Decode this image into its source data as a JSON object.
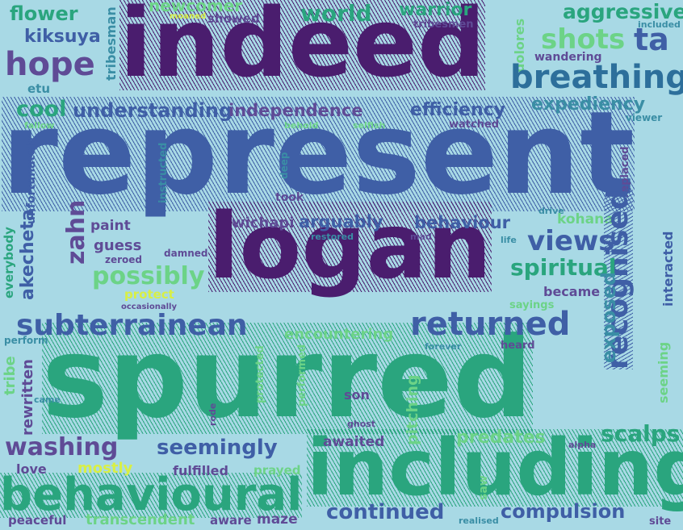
{
  "words": [
    {
      "text": "flower",
      "color": "#2aa57e"
    },
    {
      "text": "newcomer",
      "color": "#6cd387"
    },
    {
      "text": "moaned",
      "color": "#d8ef45"
    },
    {
      "text": "showed",
      "color": "#5f4b96"
    },
    {
      "text": "world",
      "color": "#2aa57e"
    },
    {
      "text": "warrior",
      "color": "#2aa57e"
    },
    {
      "text": "tribesmen",
      "color": "#5f4b96"
    },
    {
      "text": "aggressive",
      "color": "#2aa57e"
    },
    {
      "text": "included",
      "color": "#3a8ea5"
    },
    {
      "text": "kiksuya",
      "color": "#3f5fa6"
    },
    {
      "text": "indeed",
      "color": "#4a1d6e"
    },
    {
      "text": "tribesman",
      "color": "#3a8ea5"
    },
    {
      "text": "shots",
      "color": "#6cd387"
    },
    {
      "text": "ta",
      "color": "#3f5fa6"
    },
    {
      "text": "dolores",
      "color": "#6cd387"
    },
    {
      "text": "wandering",
      "color": "#5f4b96"
    },
    {
      "text": "hope",
      "color": "#5f4b96"
    },
    {
      "text": "etu",
      "color": "#3a8ea5"
    },
    {
      "text": "breathing",
      "color": "#2d6f9b"
    },
    {
      "text": "cool",
      "color": "#2aa57e"
    },
    {
      "text": "understanding",
      "color": "#3f5fa6"
    },
    {
      "text": "independence",
      "color": "#5f4b96"
    },
    {
      "text": "efficiency",
      "color": "#3f5fa6"
    },
    {
      "text": "expediency",
      "color": "#3a8ea5"
    },
    {
      "text": "fallow",
      "color": "#6cd387"
    },
    {
      "text": "behold",
      "color": "#6cd387"
    },
    {
      "text": "selfish",
      "color": "#6cd387"
    },
    {
      "text": "watched",
      "color": "#5f4b96"
    },
    {
      "text": "viewer",
      "color": "#3a8ea5"
    },
    {
      "text": "represent",
      "color": "#3f5fa6"
    },
    {
      "text": "unfortunately",
      "color": "#3f5fa6"
    },
    {
      "text": "instructed",
      "color": "#3a8ea5"
    },
    {
      "text": "deep",
      "color": "#3a8ea5"
    },
    {
      "text": "took",
      "color": "#5f4b96"
    },
    {
      "text": "replaced",
      "color": "#5f4b96"
    },
    {
      "text": "everybody",
      "color": "#2aa57e"
    },
    {
      "text": "akecheta",
      "color": "#3f5fa6"
    },
    {
      "text": "zahn",
      "color": "#5f4b96"
    },
    {
      "text": "paint",
      "color": "#5f4b96"
    },
    {
      "text": "wichapi",
      "color": "#5f4b96"
    },
    {
      "text": "arguably",
      "color": "#3f5fa6"
    },
    {
      "text": "behaviour",
      "color": "#3f5fa6"
    },
    {
      "text": "drive",
      "color": "#3a8ea5"
    },
    {
      "text": "kohana",
      "color": "#6cd387"
    },
    {
      "text": "guess",
      "color": "#5f4b96"
    },
    {
      "text": "zeroed",
      "color": "#5f4b96"
    },
    {
      "text": "logan",
      "color": "#4a1d6e"
    },
    {
      "text": "restored",
      "color": "#3a8ea5"
    },
    {
      "text": "mad",
      "color": "#5f4b96"
    },
    {
      "text": "life",
      "color": "#3a8ea5"
    },
    {
      "text": "views",
      "color": "#3f5fa6"
    },
    {
      "text": "recognised",
      "color": "#3f5fa6"
    },
    {
      "text": "interacted",
      "color": "#3f5fa6"
    },
    {
      "text": "damned",
      "color": "#5f4b96"
    },
    {
      "text": "spiritual",
      "color": "#2aa57e"
    },
    {
      "text": "possibly",
      "color": "#6cd387"
    },
    {
      "text": "protect",
      "color": "#d8ef45"
    },
    {
      "text": "occasionally",
      "color": "#5f4b96"
    },
    {
      "text": "became",
      "color": "#5f4b96"
    },
    {
      "text": "sayings",
      "color": "#6cd387"
    },
    {
      "text": "subterrainean",
      "color": "#3f5fa6"
    },
    {
      "text": "encountering",
      "color": "#6cd387"
    },
    {
      "text": "returned",
      "color": "#3f5fa6"
    },
    {
      "text": "exposed",
      "color": "#3a8ea5"
    },
    {
      "text": "seeming",
      "color": "#6cd387"
    },
    {
      "text": "perform",
      "color": "#3a8ea5"
    },
    {
      "text": "spurred",
      "color": "#2aa57e"
    },
    {
      "text": "forever",
      "color": "#3a8ea5"
    },
    {
      "text": "heard",
      "color": "#5f4b96"
    },
    {
      "text": "tribe",
      "color": "#6cd387"
    },
    {
      "text": "rewritten",
      "color": "#5f4b96"
    },
    {
      "text": "came",
      "color": "#3a8ea5"
    },
    {
      "text": "protected",
      "color": "#6cd387"
    },
    {
      "text": "performed",
      "color": "#6cd387"
    },
    {
      "text": "son",
      "color": "#5f4b96"
    },
    {
      "text": "pitching",
      "color": "#6cd387"
    },
    {
      "text": "rode",
      "color": "#5f4b96"
    },
    {
      "text": "ghost",
      "color": "#5f4b96"
    },
    {
      "text": "scalps",
      "color": "#2aa57e"
    },
    {
      "text": "washing",
      "color": "#5f4b96"
    },
    {
      "text": "seemingly",
      "color": "#3f5fa6"
    },
    {
      "text": "awaited",
      "color": "#5f4b96"
    },
    {
      "text": "predates",
      "color": "#6cd387"
    },
    {
      "text": "alpha",
      "color": "#5f4b96"
    },
    {
      "text": "love",
      "color": "#5f4b96"
    },
    {
      "text": "mostly",
      "color": "#d8ef45"
    },
    {
      "text": "fulfilled",
      "color": "#5f4b96"
    },
    {
      "text": "prayed",
      "color": "#6cd387"
    },
    {
      "text": "including",
      "color": "#2aa57e"
    },
    {
      "text": "saw",
      "color": "#6cd387"
    },
    {
      "text": "behavioural",
      "color": "#2aa57e"
    },
    {
      "text": "continued",
      "color": "#3f5fa6"
    },
    {
      "text": "compulsion",
      "color": "#3f5fa6"
    },
    {
      "text": "peaceful",
      "color": "#5f4b96"
    },
    {
      "text": "transcendent",
      "color": "#6cd387"
    },
    {
      "text": "aware",
      "color": "#5f4b96"
    },
    {
      "text": "maze",
      "color": "#5f4b96"
    },
    {
      "text": "realised",
      "color": "#3a8ea5"
    },
    {
      "text": "site",
      "color": "#5f4b96"
    }
  ]
}
